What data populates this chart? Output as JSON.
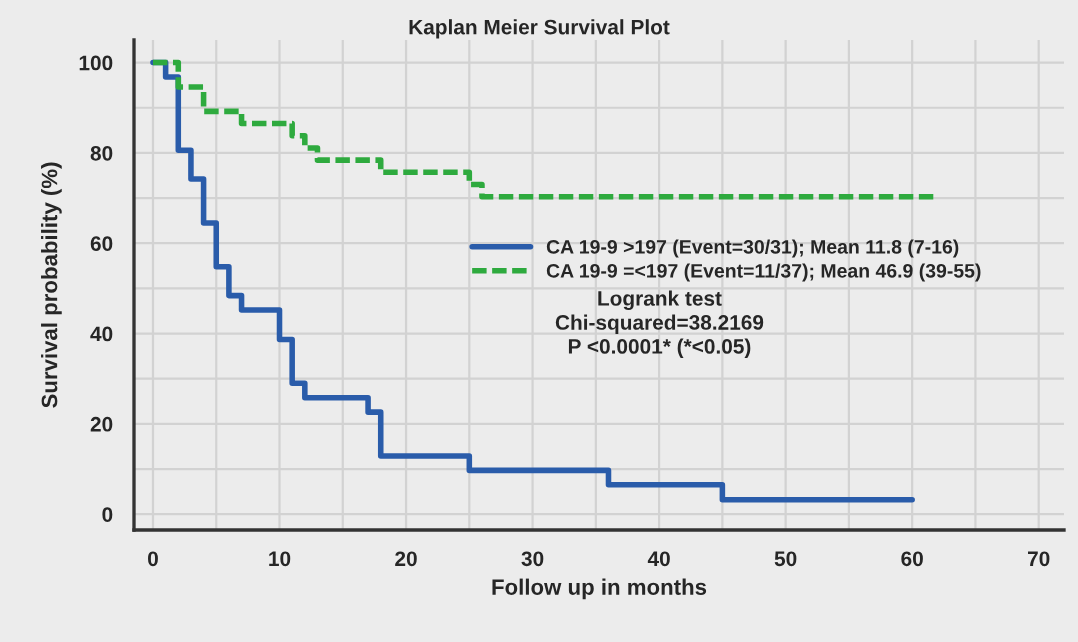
{
  "chart_data": {
    "type": "step",
    "title": "Kaplan Meier Survival Plot",
    "xlabel": "Follow up in months",
    "ylabel": "Survival probability (%)",
    "series": [
      {
        "name": "CA 19-9 >197 (Event=30/31); Mean 11.8 (7-16)",
        "color": "#2a5caa",
        "line_style": "solid",
        "x": [
          0,
          1,
          2,
          3,
          4,
          5,
          6,
          7,
          10,
          11,
          12,
          17,
          18,
          25,
          36,
          45,
          60
        ],
        "values": [
          100,
          96.8,
          80.6,
          74.2,
          64.5,
          54.8,
          48.4,
          45.2,
          38.7,
          29.0,
          25.8,
          22.6,
          12.9,
          9.7,
          6.5,
          3.2,
          3.2
        ]
      },
      {
        "name": "CA 19-9 =<197 (Event=11/37); Mean 46.9 (39-55)",
        "color": "#2eaa3e",
        "line_style": "dashed",
        "x": [
          0,
          2,
          4,
          7,
          11,
          12,
          13,
          18,
          25,
          26,
          62
        ],
        "values": [
          100,
          94.6,
          89.2,
          86.5,
          83.8,
          81.1,
          78.4,
          75.7,
          73.0,
          70.3,
          70.3
        ]
      }
    ],
    "annotations": [
      "Logrank test\nChi-squared=38.2169\nP <0.0001* (*<0.05)"
    ],
    "xlim": [
      -1.5,
      72
    ],
    "ylim": [
      -3.5,
      105
    ],
    "xticks": [
      0,
      {
        "value": 5,
        "label": null
      },
      10,
      {
        "value": 15,
        "label": null
      },
      20,
      {
        "value": 25,
        "label": null
      },
      30,
      {
        "value": 35,
        "label": null
      },
      40,
      {
        "value": 45,
        "label": null
      },
      50,
      {
        "value": 55,
        "label": null
      },
      60,
      {
        "value": 65,
        "label": null
      },
      70
    ],
    "yticks": [
      0,
      {
        "value": 10,
        "label": null
      },
      20,
      {
        "value": 30,
        "label": null
      },
      40,
      {
        "value": 50,
        "label": null
      },
      60,
      {
        "value": 70,
        "label": null
      },
      80,
      {
        "value": 90,
        "label": null
      },
      100
    ],
    "grid": true,
    "legend": "right"
  }
}
